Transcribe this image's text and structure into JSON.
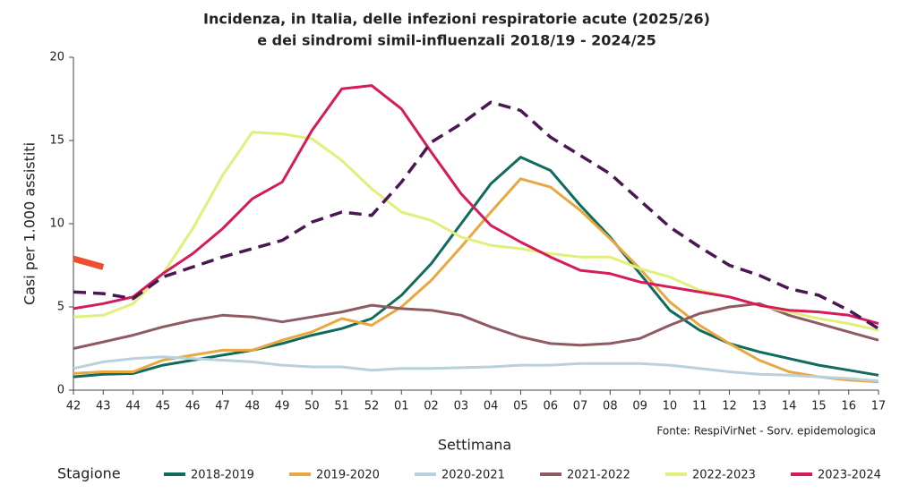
{
  "chart_data": {
    "type": "line",
    "title": "Incidenza, in Italia, delle infezioni respiratorie acute (2025/26)",
    "subtitle": "e dei sindromi simil-influenzali 2018/19 - 2024/25",
    "x_label": "Settimana",
    "y_label": "Casi per 1.000 assistiti",
    "source": "Fonte: RespiVirNet - Sorv. epidemologica",
    "legend_title": "Stagione",
    "categories": [
      "42",
      "43",
      "44",
      "45",
      "46",
      "47",
      "48",
      "49",
      "50",
      "51",
      "52",
      "01",
      "02",
      "03",
      "04",
      "05",
      "06",
      "07",
      "08",
      "09",
      "10",
      "11",
      "12",
      "13",
      "14",
      "15",
      "16",
      "17"
    ],
    "ylim": [
      0,
      20
    ],
    "yticks": [
      0,
      5,
      10,
      15,
      20
    ],
    "series": [
      {
        "name": "2018-2019",
        "color": "#0f6b5c",
        "values": [
          0.8,
          0.95,
          1.0,
          1.5,
          1.8,
          2.1,
          2.4,
          2.8,
          3.3,
          3.7,
          4.3,
          5.7,
          7.6,
          10.0,
          12.4,
          14.0,
          13.2,
          11.1,
          9.2,
          7.0,
          4.8,
          3.6,
          2.8,
          2.3,
          1.9,
          1.5,
          1.2,
          0.9
        ]
      },
      {
        "name": "2019-2020",
        "color": "#e8a840",
        "values": [
          1.0,
          1.1,
          1.1,
          1.8,
          2.1,
          2.4,
          2.4,
          3.0,
          3.5,
          4.3,
          3.9,
          5.0,
          6.6,
          8.6,
          10.7,
          12.7,
          12.2,
          10.8,
          9.1,
          7.3,
          5.3,
          3.9,
          2.8,
          1.8,
          1.1,
          0.8,
          0.6,
          0.5
        ]
      },
      {
        "name": "2020-2021",
        "color": "#b8d1dd",
        "values": [
          1.3,
          1.7,
          1.9,
          2.0,
          1.9,
          1.8,
          1.7,
          1.5,
          1.4,
          1.4,
          1.2,
          1.3,
          1.3,
          1.35,
          1.4,
          1.5,
          1.5,
          1.6,
          1.6,
          1.6,
          1.5,
          1.3,
          1.1,
          0.95,
          0.9,
          0.8,
          0.7,
          0.55
        ]
      },
      {
        "name": "2021-2022",
        "color": "#8e5b63",
        "values": [
          2.5,
          2.9,
          3.3,
          3.8,
          4.2,
          4.5,
          4.4,
          4.1,
          4.4,
          4.7,
          5.1,
          4.9,
          4.8,
          4.5,
          3.8,
          3.2,
          2.8,
          2.7,
          2.8,
          3.1,
          3.9,
          4.6,
          5.0,
          5.2,
          4.5,
          4.0,
          3.5,
          3.0
        ]
      },
      {
        "name": "2022-2023",
        "color": "#e2ef7c",
        "values": [
          4.4,
          4.5,
          5.2,
          7.0,
          9.7,
          12.9,
          15.5,
          15.4,
          15.1,
          13.8,
          12.1,
          10.7,
          10.2,
          9.2,
          8.7,
          8.5,
          8.2,
          8.0,
          8.0,
          7.3,
          6.8,
          6.0,
          5.6,
          5.1,
          4.7,
          4.3,
          4.0,
          3.6
        ]
      },
      {
        "name": "2023-2024",
        "color": "#d61b5b",
        "values": [
          4.9,
          5.2,
          5.6,
          7.0,
          8.2,
          9.7,
          11.5,
          12.5,
          15.6,
          18.1,
          18.3,
          16.9,
          14.3,
          11.8,
          9.9,
          8.9,
          8.0,
          7.2,
          7.0,
          6.5,
          6.2,
          5.9,
          5.6,
          5.1,
          4.8,
          4.7,
          4.5,
          4.0
        ]
      },
      {
        "color": "#4a1752",
        "dashed": true,
        "values": [
          5.9,
          5.8,
          5.5,
          6.8,
          7.4,
          8.0,
          8.5,
          9.0,
          10.1,
          10.7,
          10.5,
          12.5,
          14.9,
          16.0,
          17.3,
          16.8,
          15.2,
          14.1,
          13.0,
          11.4,
          9.8,
          8.6,
          7.5,
          6.9,
          6.1,
          5.7,
          4.8,
          3.7
        ]
      },
      {
        "color": "#f04e30",
        "thick": true,
        "values": [
          7.9,
          7.4,
          null,
          null,
          null,
          null,
          null,
          null,
          null,
          null,
          null,
          null,
          null,
          null,
          null,
          null,
          null,
          null,
          null,
          null,
          null,
          null,
          null,
          null,
          null,
          null,
          null,
          null
        ]
      }
    ]
  }
}
